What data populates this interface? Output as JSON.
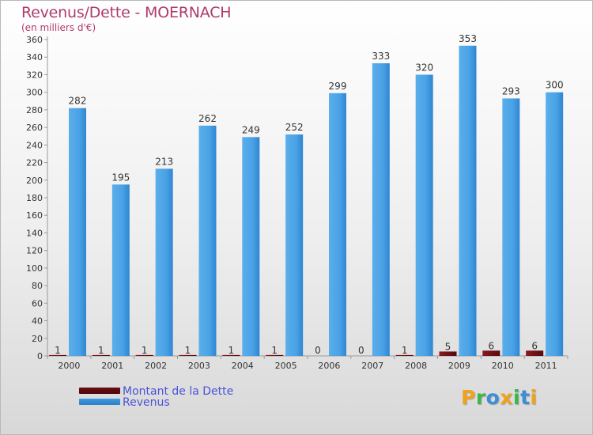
{
  "chart_data": {
    "type": "bar",
    "title": "Revenus/Dette - MOERNACH",
    "subtitle": "(en milliers d'€)",
    "categories": [
      "2000",
      "2001",
      "2002",
      "2003",
      "2004",
      "2005",
      "2006",
      "2007",
      "2008",
      "2009",
      "2010",
      "2011"
    ],
    "series": [
      {
        "name": "Montant de la Dette",
        "color": "#6e0d12",
        "values": [
          1,
          1,
          1,
          1,
          1,
          1,
          0,
          0,
          1,
          5,
          6,
          6
        ]
      },
      {
        "name": "Revenus",
        "color": "#3f9be3",
        "values": [
          282,
          195,
          213,
          262,
          249,
          252,
          299,
          333,
          320,
          353,
          293,
          300
        ]
      }
    ],
    "ylim": [
      0,
      360
    ],
    "yticks": [
      0,
      20,
      40,
      60,
      80,
      100,
      120,
      140,
      160,
      180,
      200,
      220,
      240,
      260,
      280,
      300,
      320,
      340,
      360
    ],
    "grid": false,
    "legend_position": "bottom-left"
  },
  "logo": {
    "letters": [
      "P",
      "r",
      "o",
      "x",
      "i",
      "t",
      "i"
    ],
    "colors": [
      "#f0a21b",
      "#3db54a",
      "#3a8fd6",
      "#f0a21b",
      "#3db54a",
      "#3a8fd6",
      "#f0a21b"
    ]
  }
}
